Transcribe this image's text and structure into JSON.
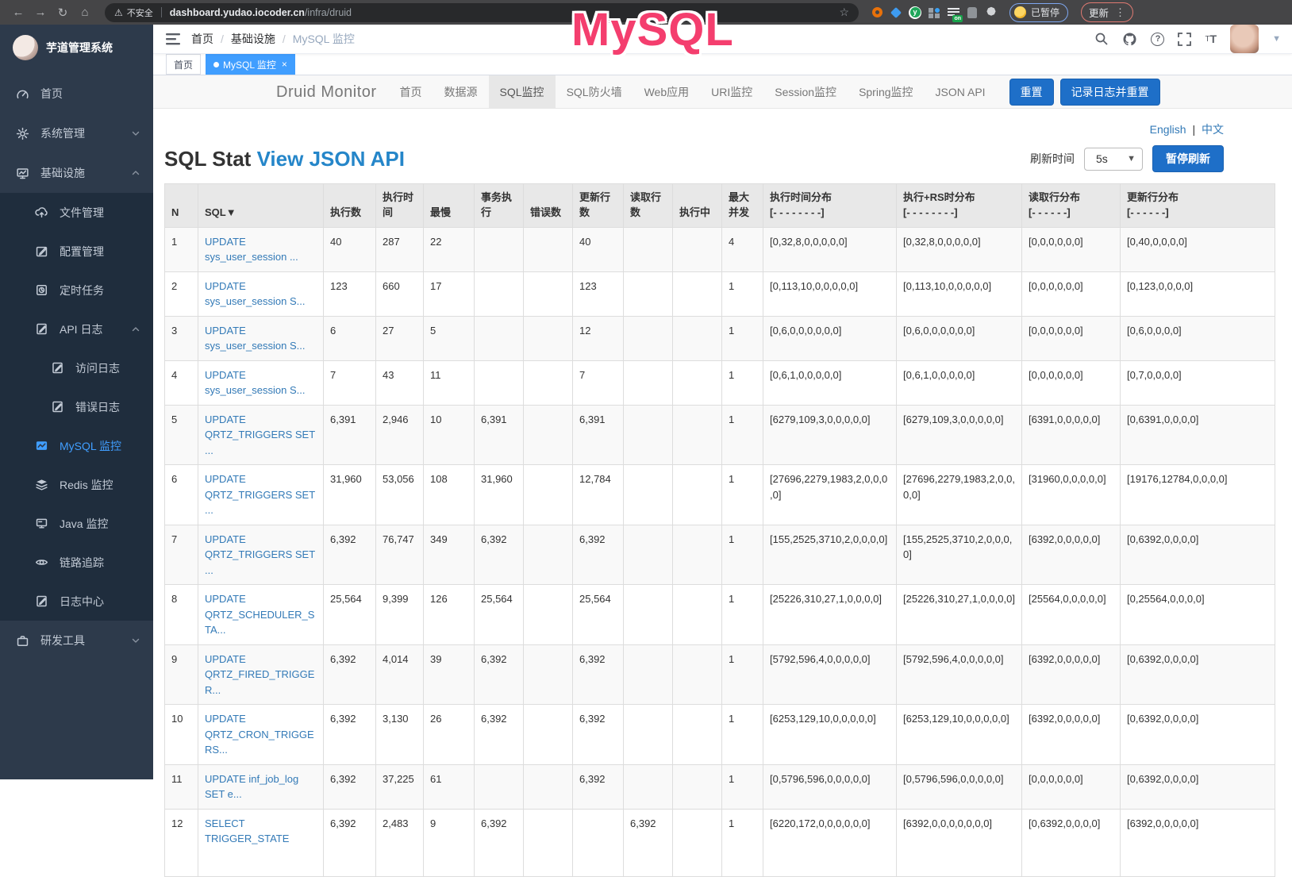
{
  "browser": {
    "security_label": "不安全",
    "url_domain": "dashboard.yudao.iocoder.cn",
    "url_path": "/infra/druid",
    "extension_badge": "on",
    "extension_letter": "y",
    "paused_label": "已暂停",
    "update_label": "更新"
  },
  "overlay": {
    "text": "MySQL",
    "color": "#f43e6e"
  },
  "sidebar": {
    "brand": "芋道管理系统",
    "items": [
      {
        "label": "首页",
        "icon": "dashboard-icon",
        "level": 0
      },
      {
        "label": "系统管理",
        "icon": "gear-icon",
        "level": 0,
        "chevron": "down"
      },
      {
        "label": "基础设施",
        "icon": "infrastructure-icon",
        "level": 0,
        "chevron": "up",
        "open": true
      },
      {
        "label": "文件管理",
        "icon": "file-upload-icon",
        "level": 1,
        "group": true
      },
      {
        "label": "配置管理",
        "icon": "config-edit-icon",
        "level": 1,
        "group": true
      },
      {
        "label": "定时任务",
        "icon": "timer-icon",
        "level": 1,
        "group": true
      },
      {
        "label": "API 日志",
        "icon": "api-log-icon",
        "level": 1,
        "group": true,
        "chevron": "up"
      },
      {
        "label": "访问日志",
        "icon": "access-log-icon",
        "level": 2,
        "group": true
      },
      {
        "label": "错误日志",
        "icon": "error-log-icon",
        "level": 2,
        "group": true
      },
      {
        "label": "MySQL 监控",
        "icon": "mysql-icon",
        "level": 1,
        "group": true,
        "active": true
      },
      {
        "label": "Redis 监控",
        "icon": "redis-icon",
        "level": 1,
        "group": true
      },
      {
        "label": "Java 监控",
        "icon": "java-icon",
        "level": 1,
        "group": true
      },
      {
        "label": "链路追踪",
        "icon": "trace-eye-icon",
        "level": 1,
        "group": true
      },
      {
        "label": "日志中心",
        "icon": "log-center-icon",
        "level": 1,
        "group": true
      },
      {
        "label": "研发工具",
        "icon": "tools-icon",
        "level": 0,
        "chevron": "down"
      }
    ]
  },
  "navbar": {
    "breadcrumb": [
      {
        "label": "首页",
        "muted": false
      },
      {
        "label": "基础设施",
        "muted": false
      },
      {
        "label": "MySQL 监控",
        "muted": true
      }
    ],
    "icons": [
      "search-icon",
      "github-icon",
      "help-icon",
      "fullscreen-icon",
      "font-size-icon",
      "avatar",
      "caret-down-icon"
    ]
  },
  "tabs": [
    {
      "label": "首页",
      "active": false
    },
    {
      "label": "MySQL 监控",
      "active": true
    }
  ],
  "druid": {
    "brand": "Druid Monitor",
    "nav": [
      {
        "label": "首页"
      },
      {
        "label": "数据源"
      },
      {
        "label": "SQL监控",
        "active": true
      },
      {
        "label": "SQL防火墙"
      },
      {
        "label": "Web应用"
      },
      {
        "label": "URI监控"
      },
      {
        "label": "Session监控"
      },
      {
        "label": "Spring监控"
      },
      {
        "label": "JSON API"
      }
    ],
    "reset_button": "重置",
    "log_reset_button": "记录日志并重置",
    "lang_english": "English",
    "lang_divider": "|",
    "lang_chinese": "中文",
    "title": "SQL Stat",
    "title_link": "View JSON API",
    "refresh_label": "刷新时间",
    "refresh_interval": "5s",
    "pause_button": "暂停刷新"
  },
  "table": {
    "headers": [
      {
        "label": "N"
      },
      {
        "label": "SQL▼"
      },
      {
        "label": "执行数"
      },
      {
        "label": "执行时间"
      },
      {
        "label": "最慢"
      },
      {
        "label": "事务执行"
      },
      {
        "label": "错误数"
      },
      {
        "label": "更新行数"
      },
      {
        "label": "读取行数"
      },
      {
        "label": "执行中"
      },
      {
        "label": "最大并发"
      },
      {
        "label": "执行时间分布",
        "sub": "[- - - - - - - -]"
      },
      {
        "label": "执行+RS时分布",
        "sub": "[- - - - - - - -]"
      },
      {
        "label": "读取行分布",
        "sub": "[- - - - - -]"
      },
      {
        "label": "更新行分布",
        "sub": "[- - - - - -]"
      }
    ],
    "rows": [
      [
        "1",
        "UPDATE sys_user_session ...",
        "40",
        "287",
        "22",
        "",
        "",
        "40",
        "",
        "",
        "4",
        "[0,32,8,0,0,0,0,0]",
        "[0,32,8,0,0,0,0,0]",
        "[0,0,0,0,0,0]",
        "[0,40,0,0,0,0]"
      ],
      [
        "2",
        "UPDATE sys_user_session S...",
        "123",
        "660",
        "17",
        "",
        "",
        "123",
        "",
        "",
        "1",
        "[0,113,10,0,0,0,0,0]",
        "[0,113,10,0,0,0,0,0]",
        "[0,0,0,0,0,0]",
        "[0,123,0,0,0,0]"
      ],
      [
        "3",
        "UPDATE sys_user_session S...",
        "6",
        "27",
        "5",
        "",
        "",
        "12",
        "",
        "",
        "1",
        "[0,6,0,0,0,0,0,0]",
        "[0,6,0,0,0,0,0,0]",
        "[0,0,0,0,0,0]",
        "[0,6,0,0,0,0]"
      ],
      [
        "4",
        "UPDATE sys_user_session S...",
        "7",
        "43",
        "11",
        "",
        "",
        "7",
        "",
        "",
        "1",
        "[0,6,1,0,0,0,0,0]",
        "[0,6,1,0,0,0,0,0]",
        "[0,0,0,0,0,0]",
        "[0,7,0,0,0,0]"
      ],
      [
        "5",
        "UPDATE QRTZ_TRIGGERS SET ...",
        "6,391",
        "2,946",
        "10",
        "6,391",
        "",
        "6,391",
        "",
        "",
        "1",
        "[6279,109,3,0,0,0,0,0]",
        "[6279,109,3,0,0,0,0,0]",
        "[6391,0,0,0,0,0]",
        "[0,6391,0,0,0,0]"
      ],
      [
        "6",
        "UPDATE QRTZ_TRIGGERS SET ...",
        "31,960",
        "53,056",
        "108",
        "31,960",
        "",
        "12,784",
        "",
        "",
        "1",
        "[27696,2279,1983,2,0,0,0,0]",
        "[27696,2279,1983,2,0,0,0,0]",
        "[31960,0,0,0,0,0]",
        "[19176,12784,0,0,0,0]"
      ],
      [
        "7",
        "UPDATE QRTZ_TRIGGERS SET ...",
        "6,392",
        "76,747",
        "349",
        "6,392",
        "",
        "6,392",
        "",
        "",
        "1",
        "[155,2525,3710,2,0,0,0,0]",
        "[155,2525,3710,2,0,0,0,0]",
        "[6392,0,0,0,0,0]",
        "[0,6392,0,0,0,0]"
      ],
      [
        "8",
        "UPDATE QRTZ_SCHEDULER_STA...",
        "25,564",
        "9,399",
        "126",
        "25,564",
        "",
        "25,564",
        "",
        "",
        "1",
        "[25226,310,27,1,0,0,0,0]",
        "[25226,310,27,1,0,0,0,0]",
        "[25564,0,0,0,0,0]",
        "[0,25564,0,0,0,0]"
      ],
      [
        "9",
        "UPDATE QRTZ_FIRED_TRIGGER...",
        "6,392",
        "4,014",
        "39",
        "6,392",
        "",
        "6,392",
        "",
        "",
        "1",
        "[5792,596,4,0,0,0,0,0]",
        "[5792,596,4,0,0,0,0,0]",
        "[6392,0,0,0,0,0]",
        "[0,6392,0,0,0,0]"
      ],
      [
        "10",
        "UPDATE QRTZ_CRON_TRIGGERS...",
        "6,392",
        "3,130",
        "26",
        "6,392",
        "",
        "6,392",
        "",
        "",
        "1",
        "[6253,129,10,0,0,0,0,0]",
        "[6253,129,10,0,0,0,0,0]",
        "[6392,0,0,0,0,0]",
        "[0,6392,0,0,0,0]"
      ],
      [
        "11",
        "UPDATE inf_job_log SET e...",
        "6,392",
        "37,225",
        "61",
        "",
        "",
        "6,392",
        "",
        "",
        "1",
        "[0,5796,596,0,0,0,0,0]",
        "[0,5796,596,0,0,0,0,0]",
        "[0,0,0,0,0,0]",
        "[0,6392,0,0,0,0]"
      ],
      [
        "12",
        "SELECT TRIGGER_STATE",
        "6,392",
        "2,483",
        "9",
        "6,392",
        "",
        "",
        "6,392",
        "",
        "1",
        "[6220,172,0,0,0,0,0,0]",
        "[6392,0,0,0,0,0,0,0]",
        "[0,6392,0,0,0,0]",
        "[6392,0,0,0,0,0]"
      ]
    ]
  }
}
